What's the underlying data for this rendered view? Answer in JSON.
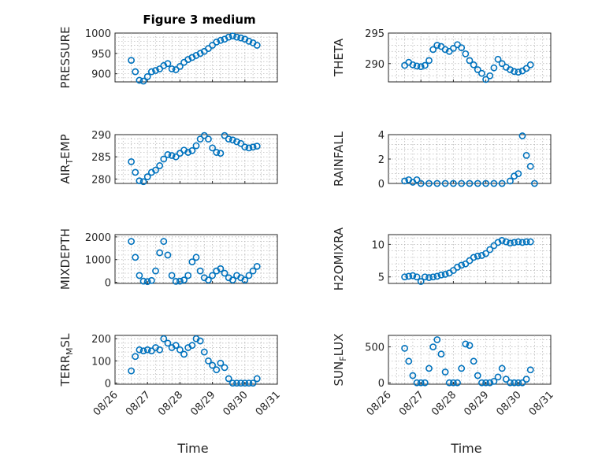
{
  "chart_data": {
    "type": "scatter",
    "title": "Figure 3 medium",
    "marker_color": "#0072BD",
    "marker": "circle",
    "grid": true,
    "shared_x_ticks": [
      "08/26",
      "08/27",
      "08/28",
      "08/29",
      "08/30",
      "08/31"
    ],
    "shared_xlabel": "Time",
    "subplots": [
      {
        "id": "pressure",
        "ylabel_parts": [
          {
            "t": "PRESSURE"
          }
        ],
        "ylim": [
          880,
          1000
        ],
        "yticks": [
          900,
          950,
          1000
        ],
        "xlim": [
          "08/26",
          "08/31"
        ],
        "series": [
          {
            "x": [
              "08/26 12:00",
              "08/26 15:00",
              "08/26 18:00",
              "08/26 21:00",
              "08/27 00:00",
              "08/27 03:00",
              "08/27 06:00",
              "08/27 09:00",
              "08/27 12:00",
              "08/27 15:00",
              "08/27 18:00",
              "08/27 21:00",
              "08/28 00:00",
              "08/28 03:00",
              "08/28 06:00",
              "08/28 09:00",
              "08/28 12:00",
              "08/28 15:00",
              "08/28 18:00",
              "08/28 21:00",
              "08/29 00:00",
              "08/29 03:00",
              "08/29 06:00",
              "08/29 09:00",
              "08/29 12:00",
              "08/29 15:00",
              "08/29 18:00",
              "08/29 21:00",
              "08/30 00:00",
              "08/30 03:00",
              "08/30 06:00",
              "08/30 09:00"
            ],
            "y": [
              933,
              905,
              884,
              882,
              893,
              905,
              908,
              912,
              920,
              925,
              912,
              910,
              918,
              928,
              935,
              940,
              945,
              950,
              955,
              962,
              970,
              978,
              982,
              985,
              990,
              993,
              990,
              988,
              985,
              980,
              976,
              970
            ]
          }
        ]
      },
      {
        "id": "theta",
        "ylabel_parts": [
          {
            "t": "THETA"
          }
        ],
        "ylim": [
          287,
          295
        ],
        "yticks": [
          290,
          295
        ],
        "xlim": [
          "08/26",
          "08/31"
        ],
        "series": [
          {
            "x": [
              "08/26 12:00",
              "08/26 15:00",
              "08/26 18:00",
              "08/26 21:00",
              "08/27 00:00",
              "08/27 03:00",
              "08/27 06:00",
              "08/27 09:00",
              "08/27 12:00",
              "08/27 15:00",
              "08/27 18:00",
              "08/27 21:00",
              "08/28 00:00",
              "08/28 03:00",
              "08/28 06:00",
              "08/28 09:00",
              "08/28 12:00",
              "08/28 15:00",
              "08/28 18:00",
              "08/28 21:00",
              "08/29 00:00",
              "08/29 03:00",
              "08/29 06:00",
              "08/29 09:00",
              "08/29 12:00",
              "08/29 15:00",
              "08/29 18:00",
              "08/29 21:00",
              "08/30 00:00",
              "08/30 03:00",
              "08/30 06:00",
              "08/30 09:00"
            ],
            "y": [
              289.7,
              290.2,
              289.8,
              289.6,
              289.5,
              289.7,
              290.5,
              292.3,
              293.0,
              292.8,
              292.3,
              292.0,
              292.5,
              293.1,
              292.6,
              291.6,
              290.5,
              289.8,
              289.0,
              288.4,
              287.4,
              288.0,
              289.3,
              290.7,
              290.0,
              289.4,
              289.0,
              288.7,
              288.6,
              288.8,
              289.2,
              289.8
            ]
          }
        ]
      },
      {
        "id": "air_temp",
        "ylabel_parts": [
          {
            "t": "AIR"
          },
          {
            "t": "T",
            "sub": true
          },
          {
            "t": "EMP"
          }
        ],
        "ylim": [
          279,
          290
        ],
        "yticks": [
          280,
          285,
          290
        ],
        "xlim": [
          "08/26",
          "08/31"
        ],
        "series": [
          {
            "x": [
              "08/26 12:00",
              "08/26 15:00",
              "08/26 18:00",
              "08/26 21:00",
              "08/27 00:00",
              "08/27 03:00",
              "08/27 06:00",
              "08/27 09:00",
              "08/27 12:00",
              "08/27 15:00",
              "08/27 18:00",
              "08/27 21:00",
              "08/28 00:00",
              "08/28 03:00",
              "08/28 06:00",
              "08/28 09:00",
              "08/28 12:00",
              "08/28 15:00",
              "08/28 18:00",
              "08/28 21:00",
              "08/29 00:00",
              "08/29 03:00",
              "08/29 06:00",
              "08/29 09:00",
              "08/29 12:00",
              "08/29 15:00",
              "08/29 18:00",
              "08/29 21:00",
              "08/30 00:00",
              "08/30 03:00",
              "08/30 06:00",
              "08/30 09:00"
            ],
            "y": [
              283.9,
              281.5,
              279.6,
              279.4,
              280.5,
              281.5,
              282.0,
              283.0,
              284.5,
              285.5,
              285.3,
              285.0,
              285.8,
              286.5,
              286.0,
              286.4,
              287.5,
              289.0,
              289.8,
              289.0,
              287.0,
              286.0,
              285.8,
              289.8,
              289.0,
              288.8,
              288.4,
              288.0,
              287.2,
              287.0,
              287.2,
              287.4
            ]
          }
        ]
      },
      {
        "id": "rainfall",
        "ylabel_parts": [
          {
            "t": "RAINFALL"
          }
        ],
        "ylim": [
          0,
          4
        ],
        "yticks": [
          0,
          2,
          4
        ],
        "xlim": [
          "08/26",
          "08/31"
        ],
        "series": [
          {
            "x": [
              "08/26 12:00",
              "08/26 15:00",
              "08/26 18:00",
              "08/26 21:00",
              "08/27 00:00",
              "08/27 06:00",
              "08/27 12:00",
              "08/27 18:00",
              "08/28 00:00",
              "08/28 06:00",
              "08/28 12:00",
              "08/28 18:00",
              "08/29 00:00",
              "08/29 06:00",
              "08/29 12:00",
              "08/29 18:00",
              "08/29 21:00",
              "08/30 00:00",
              "08/30 03:00",
              "08/30 06:00",
              "08/30 09:00",
              "08/30 12:00"
            ],
            "y": [
              0.2,
              0.3,
              0.1,
              0.3,
              0.0,
              0.0,
              0.0,
              0.0,
              0.0,
              0.0,
              0.0,
              0.0,
              0.0,
              0.0,
              0.0,
              0.2,
              0.6,
              0.8,
              3.9,
              2.3,
              1.4,
              0.0
            ]
          }
        ]
      },
      {
        "id": "mixdepth",
        "ylabel_parts": [
          {
            "t": "MIXDEPTH"
          }
        ],
        "ylim": [
          -50,
          2100
        ],
        "yticks": [
          0,
          1000,
          2000
        ],
        "xlim": [
          "08/26",
          "08/31"
        ],
        "series": [
          {
            "x": [
              "08/26 12:00",
              "08/26 15:00",
              "08/26 18:00",
              "08/26 21:00",
              "08/27 00:00",
              "08/27 03:00",
              "08/27 06:00",
              "08/27 09:00",
              "08/27 12:00",
              "08/27 15:00",
              "08/27 18:00",
              "08/27 21:00",
              "08/28 00:00",
              "08/28 03:00",
              "08/28 06:00",
              "08/28 09:00",
              "08/28 12:00",
              "08/28 15:00",
              "08/28 18:00",
              "08/28 21:00",
              "08/29 00:00",
              "08/29 03:00",
              "08/29 06:00",
              "08/29 09:00",
              "08/29 12:00",
              "08/29 15:00",
              "08/29 18:00",
              "08/29 21:00",
              "08/30 00:00",
              "08/30 03:00",
              "08/30 06:00",
              "08/30 09:00"
            ],
            "y": [
              1800,
              1100,
              300,
              50,
              30,
              80,
              500,
              1300,
              1800,
              1200,
              300,
              40,
              50,
              100,
              300,
              900,
              1100,
              500,
              200,
              100,
              300,
              500,
              600,
              400,
              200,
              100,
              300,
              200,
              100,
              300,
              500,
              700
            ]
          }
        ]
      },
      {
        "id": "h2omixra",
        "ylabel_parts": [
          {
            "t": "H2OMIXRA"
          }
        ],
        "ylim": [
          4,
          11.5
        ],
        "yticks": [
          5,
          10
        ],
        "xlim": [
          "08/26",
          "08/31"
        ],
        "series": [
          {
            "x": [
              "08/26 12:00",
              "08/26 15:00",
              "08/26 18:00",
              "08/26 21:00",
              "08/27 00:00",
              "08/27 03:00",
              "08/27 06:00",
              "08/27 09:00",
              "08/27 12:00",
              "08/27 15:00",
              "08/27 18:00",
              "08/27 21:00",
              "08/28 00:00",
              "08/28 03:00",
              "08/28 06:00",
              "08/28 09:00",
              "08/28 12:00",
              "08/28 15:00",
              "08/28 18:00",
              "08/28 21:00",
              "08/29 00:00",
              "08/29 03:00",
              "08/29 06:00",
              "08/29 09:00",
              "08/29 12:00",
              "08/29 15:00",
              "08/29 18:00",
              "08/29 21:00",
              "08/30 00:00",
              "08/30 03:00",
              "08/30 06:00",
              "08/30 09:00"
            ],
            "y": [
              5.0,
              5.1,
              5.2,
              5.0,
              4.3,
              5.0,
              4.9,
              5.0,
              5.1,
              5.3,
              5.4,
              5.6,
              6.0,
              6.5,
              6.8,
              7.0,
              7.5,
              8.0,
              8.2,
              8.3,
              8.6,
              9.2,
              9.8,
              10.3,
              10.6,
              10.4,
              10.2,
              10.3,
              10.4,
              10.3,
              10.4,
              10.4
            ]
          }
        ]
      },
      {
        "id": "terr_msl",
        "ylabel_parts": [
          {
            "t": "TERR"
          },
          {
            "t": "M",
            "sub": true
          },
          {
            "t": "SL"
          }
        ],
        "ylim": [
          -5,
          215
        ],
        "yticks": [
          0,
          100,
          200
        ],
        "xlim": [
          "08/26",
          "08/31"
        ],
        "series": [
          {
            "x": [
              "08/26 12:00",
              "08/26 15:00",
              "08/26 18:00",
              "08/26 21:00",
              "08/27 00:00",
              "08/27 03:00",
              "08/27 06:00",
              "08/27 09:00",
              "08/27 12:00",
              "08/27 15:00",
              "08/27 18:00",
              "08/27 21:00",
              "08/28 00:00",
              "08/28 03:00",
              "08/28 06:00",
              "08/28 09:00",
              "08/28 12:00",
              "08/28 15:00",
              "08/28 18:00",
              "08/28 21:00",
              "08/29 00:00",
              "08/29 03:00",
              "08/29 06:00",
              "08/29 09:00",
              "08/29 12:00",
              "08/29 15:00",
              "08/29 18:00",
              "08/29 21:00",
              "08/30 00:00",
              "08/30 03:00",
              "08/30 06:00",
              "08/30 09:00"
            ],
            "y": [
              55,
              120,
              150,
              145,
              150,
              145,
              160,
              150,
              200,
              180,
              160,
              170,
              150,
              130,
              160,
              170,
              200,
              190,
              140,
              100,
              80,
              60,
              90,
              70,
              20,
              0,
              0,
              0,
              0,
              0,
              0,
              20
            ]
          }
        ]
      },
      {
        "id": "sun_flux",
        "ylabel_parts": [
          {
            "t": "SUN"
          },
          {
            "t": "F",
            "sub": true
          },
          {
            "t": "LUX"
          }
        ],
        "ylim": [
          -20,
          660
        ],
        "yticks": [
          0,
          500
        ],
        "xlim": [
          "08/26",
          "08/31"
        ],
        "series": [
          {
            "x": [
              "08/26 12:00",
              "08/26 15:00",
              "08/26 18:00",
              "08/26 21:00",
              "08/27 00:00",
              "08/27 03:00",
              "08/27 06:00",
              "08/27 09:00",
              "08/27 12:00",
              "08/27 15:00",
              "08/27 18:00",
              "08/27 21:00",
              "08/28 00:00",
              "08/28 03:00",
              "08/28 06:00",
              "08/28 09:00",
              "08/28 12:00",
              "08/28 15:00",
              "08/28 18:00",
              "08/28 21:00",
              "08/29 00:00",
              "08/29 03:00",
              "08/29 06:00",
              "08/29 09:00",
              "08/29 12:00",
              "08/29 15:00",
              "08/29 18:00",
              "08/29 21:00",
              "08/30 00:00",
              "08/30 03:00",
              "08/30 06:00",
              "08/30 09:00"
            ],
            "y": [
              480,
              300,
              100,
              0,
              0,
              0,
              200,
              500,
              600,
              400,
              150,
              0,
              0,
              0,
              200,
              540,
              520,
              300,
              100,
              0,
              0,
              0,
              20,
              80,
              200,
              50,
              0,
              0,
              0,
              0,
              50,
              180
            ]
          }
        ]
      }
    ]
  }
}
